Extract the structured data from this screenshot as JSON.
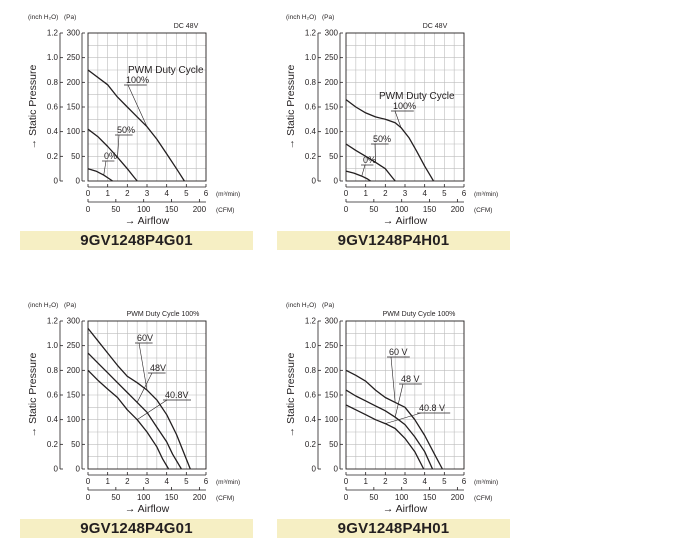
{
  "axis_text": {
    "unit_inch": "(inch H₂O)",
    "unit_pa": "(Pa)",
    "y_label": "→ Static Pressure",
    "x_label": "→ Airflow",
    "unit_m3": "(m³/min)",
    "unit_cfm": "(CFM)",
    "y_ticks_inch": [
      "1.2",
      "1.0",
      "0.8",
      "0.6",
      "0.4",
      "0.2",
      "0"
    ],
    "y_ticks_pa": [
      "300",
      "250",
      "200",
      "150",
      "100",
      "50",
      "0"
    ],
    "x_ticks_m3": [
      "0",
      "1",
      "2",
      "3",
      "4",
      "5",
      "6"
    ],
    "x_ticks_cfm": [
      "0",
      "50",
      "100",
      "150",
      "200"
    ]
  },
  "chart_data": [
    {
      "type": "line",
      "model": "9GV1248P4G01",
      "condition": "DC 48V",
      "xlabel": "Airflow",
      "ylabel": "Static Pressure",
      "xlim": [
        0,
        6
      ],
      "ylim": [
        0,
        300
      ],
      "x_unit": "m³/min",
      "y_unit": "Pa",
      "grid": true,
      "series": [
        {
          "name": "PWM Duty Cycle 100%",
          "annotation": "100%",
          "annotation_title": "PWM Duty Cycle",
          "x": [
            0,
            1,
            1.5,
            2,
            2.5,
            3,
            3.5,
            4,
            4.5,
            4.9
          ],
          "y": [
            225,
            195,
            170,
            150,
            130,
            110,
            85,
            55,
            25,
            0
          ]
        },
        {
          "name": "50%",
          "annotation": "50%",
          "x": [
            0,
            0.5,
            1,
            1.5,
            2,
            2.3,
            2.5
          ],
          "y": [
            105,
            90,
            70,
            48,
            25,
            10,
            0
          ]
        },
        {
          "name": "0%",
          "annotation": "0%",
          "x": [
            0,
            0.4,
            0.8,
            1.1,
            1.25
          ],
          "y": [
            25,
            20,
            12,
            4,
            0
          ]
        }
      ]
    },
    {
      "type": "line",
      "model": "9GV1248P4H01",
      "condition": "DC 48V",
      "xlabel": "Airflow",
      "ylabel": "Static Pressure",
      "xlim": [
        0,
        6
      ],
      "ylim": [
        0,
        300
      ],
      "x_unit": "m³/min",
      "y_unit": "Pa",
      "grid": true,
      "series": [
        {
          "name": "PWM Duty Cycle 100%",
          "annotation": "100%",
          "annotation_title": "PWM Duty Cycle",
          "x": [
            0,
            0.5,
            1,
            1.5,
            2,
            2.5,
            2.8,
            3.2,
            3.6,
            4,
            4.3,
            4.45
          ],
          "y": [
            165,
            150,
            138,
            130,
            125,
            118,
            108,
            88,
            60,
            30,
            10,
            0
          ]
        },
        {
          "name": "50%",
          "annotation": "50%",
          "x": [
            0,
            0.5,
            1,
            1.5,
            2,
            2.3,
            2.5
          ],
          "y": [
            75,
            62,
            50,
            38,
            25,
            10,
            0
          ]
        },
        {
          "name": "0%",
          "annotation": "0%",
          "x": [
            0,
            0.4,
            0.8,
            1.1,
            1.25
          ],
          "y": [
            20,
            16,
            10,
            4,
            0
          ]
        }
      ]
    },
    {
      "type": "line",
      "model": "9GV1248P4G01",
      "condition": "PWM Duty Cycle 100%",
      "xlabel": "Airflow",
      "ylabel": "Static Pressure",
      "xlim": [
        0,
        6
      ],
      "ylim": [
        0,
        300
      ],
      "x_unit": "m³/min",
      "y_unit": "Pa",
      "grid": true,
      "series": [
        {
          "name": "60V",
          "annotation": "60V",
          "x": [
            0,
            0.5,
            1,
            1.5,
            2,
            2.5,
            3,
            3.5,
            4,
            4.5,
            4.9,
            5.2
          ],
          "y": [
            285,
            260,
            235,
            210,
            188,
            175,
            160,
            140,
            110,
            70,
            30,
            0
          ]
        },
        {
          "name": "48V",
          "annotation": "48V",
          "x": [
            0,
            0.5,
            1,
            1.5,
            2,
            2.5,
            3,
            3.5,
            4,
            4.3,
            4.75
          ],
          "y": [
            235,
            215,
            195,
            175,
            155,
            135,
            115,
            85,
            55,
            30,
            0
          ]
        },
        {
          "name": "40.8V",
          "annotation": "40.8V",
          "x": [
            0,
            0.5,
            1,
            1.5,
            2,
            2.5,
            3,
            3.5,
            3.8,
            4.1
          ],
          "y": [
            200,
            180,
            162,
            145,
            120,
            100,
            75,
            45,
            20,
            0
          ]
        }
      ]
    },
    {
      "type": "line",
      "model": "9GV1248P4H01",
      "condition": "PWM Duty Cycle 100%",
      "xlabel": "Airflow",
      "ylabel": "Static Pressure",
      "xlim": [
        0,
        6
      ],
      "ylim": [
        0,
        300
      ],
      "x_unit": "m³/min",
      "y_unit": "Pa",
      "grid": true,
      "series": [
        {
          "name": "60 V",
          "annotation": "60 V",
          "x": [
            0,
            0.5,
            1,
            1.5,
            2,
            2.5,
            3,
            3.5,
            4,
            4.5,
            4.9
          ],
          "y": [
            200,
            190,
            178,
            160,
            145,
            135,
            125,
            100,
            68,
            30,
            0
          ]
        },
        {
          "name": "48 V",
          "annotation": "48 V",
          "x": [
            0,
            0.5,
            1,
            1.5,
            2,
            2.5,
            3,
            3.5,
            4,
            4.4
          ],
          "y": [
            160,
            148,
            138,
            128,
            118,
            105,
            90,
            65,
            35,
            0
          ]
        },
        {
          "name": "40.8 V",
          "annotation": "40.8 V",
          "x": [
            0,
            0.5,
            1,
            1.5,
            2,
            2.5,
            3,
            3.5,
            3.95
          ],
          "y": [
            130,
            120,
            110,
            100,
            92,
            82,
            62,
            35,
            0
          ]
        }
      ]
    }
  ]
}
